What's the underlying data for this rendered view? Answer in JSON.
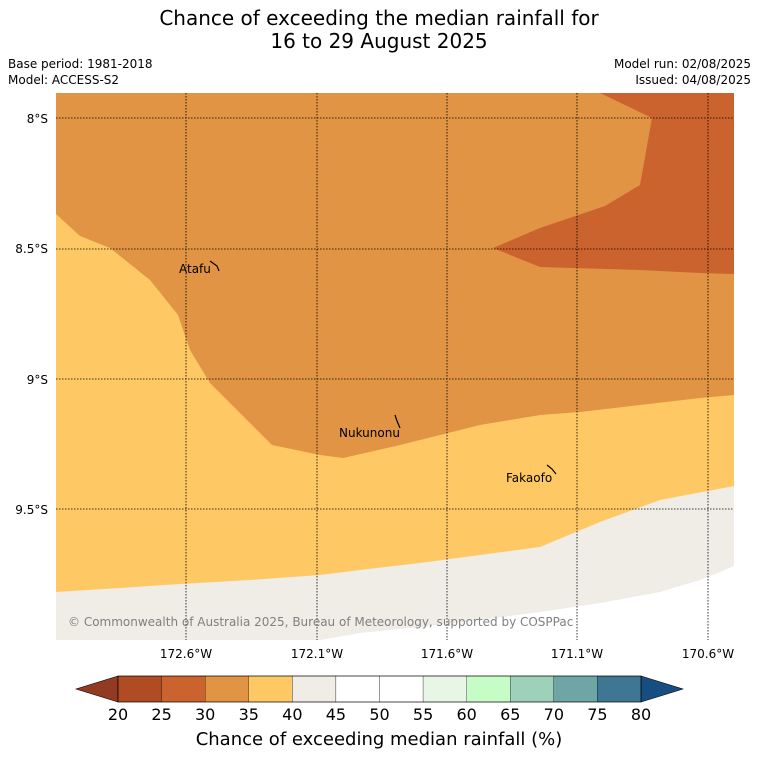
{
  "title_line1": "Chance of exceeding the median rainfall for",
  "title_line2": "16 to 29 August 2025",
  "base_period": "Base period: 1981-2018",
  "model": "Model: ACCESS-S2",
  "model_run": "Model run: 02/08/2025",
  "issued": "Issued: 04/08/2025",
  "lat_labels": [
    "8°S",
    "8.5°S",
    "9°S",
    "9.5°S"
  ],
  "lon_labels": [
    "172.6°W",
    "172.1°W",
    "171.6°W",
    "171.1°W",
    "170.6°W"
  ],
  "places": [
    "Atafu",
    "Nukunonu",
    "Fakaofo"
  ],
  "credit": "© Commonwealth of Australia 2025, Bureau of Meteorology, supported by COSPPac",
  "colorbar": {
    "ticks": [
      "20",
      "25",
      "30",
      "35",
      "40",
      "45",
      "50",
      "55",
      "60",
      "65",
      "70",
      "75",
      "80"
    ],
    "colors": [
      "#b04c23",
      "#cb632f",
      "#e09444",
      "#fec964",
      "#f0ece6",
      "#ffffff",
      "#ffffff",
      "#e8f6e6",
      "#c6fcc6",
      "#9ed1b9",
      "#6ea6a6",
      "#3e7694"
    ],
    "low_color": "#933a22",
    "high_color": "#174e82",
    "label": "Chance of exceeding median rainfall (%)"
  },
  "map_colors": {
    "25_30": "#cb632f",
    "30_35": "#e09444",
    "35_40": "#fec964",
    "40_45": "#f0ece6",
    "45_55": "#ffffff"
  }
}
